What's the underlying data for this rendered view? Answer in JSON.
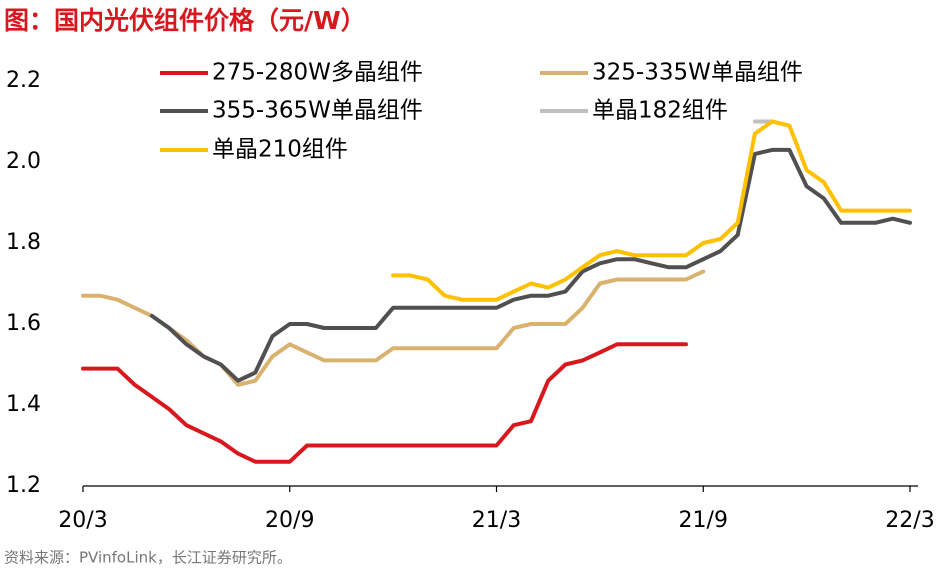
{
  "chart_data": {
    "type": "line",
    "title": "图：国内光伏组件价格（元/W）",
    "source": "资料来源：PVinfoLink，长江证券研究所。",
    "categories": [
      "20/3",
      null,
      null,
      null,
      null,
      null,
      null,
      null,
      null,
      null,
      null,
      null,
      "20/9",
      null,
      null,
      null,
      null,
      null,
      null,
      null,
      null,
      null,
      null,
      null,
      "21/3",
      null,
      null,
      null,
      null,
      null,
      null,
      null,
      null,
      null,
      null,
      null,
      "21/9",
      null,
      null,
      null,
      null,
      null,
      null,
      null,
      null,
      null,
      null,
      null,
      "22/3"
    ],
    "series": [
      {
        "name": "275-280W多晶组件",
        "color": "#d7191f",
        "values": [
          1.49,
          1.49,
          1.49,
          1.45,
          1.42,
          1.39,
          1.35,
          1.33,
          1.31,
          1.28,
          1.26,
          1.26,
          1.26,
          1.3,
          1.3,
          1.3,
          1.3,
          1.3,
          1.3,
          1.3,
          1.3,
          1.3,
          1.3,
          1.3,
          1.3,
          1.35,
          1.36,
          1.46,
          1.5,
          1.51,
          1.53,
          1.55,
          1.55,
          1.55,
          1.55,
          1.55,
          null,
          null,
          null,
          null,
          null,
          null,
          null,
          null,
          null,
          null,
          null,
          null,
          null
        ]
      },
      {
        "name": "325-335W单晶组件",
        "color": "#d9b26f",
        "values": [
          1.67,
          1.67,
          1.66,
          1.64,
          1.62,
          1.59,
          1.56,
          1.52,
          1.5,
          1.45,
          1.46,
          1.52,
          1.55,
          1.53,
          1.51,
          1.51,
          1.51,
          1.51,
          1.54,
          1.54,
          1.54,
          1.54,
          1.54,
          1.54,
          1.54,
          1.59,
          1.6,
          1.6,
          1.6,
          1.64,
          1.7,
          1.71,
          1.71,
          1.71,
          1.71,
          1.71,
          1.73,
          null,
          null,
          null,
          null,
          null,
          null,
          null,
          null,
          null,
          null,
          null,
          null
        ]
      },
      {
        "name": "355-365W单晶组件",
        "color": "#505050",
        "values": [
          null,
          null,
          null,
          null,
          1.62,
          1.59,
          1.55,
          1.52,
          1.5,
          1.46,
          1.48,
          1.57,
          1.6,
          1.6,
          1.59,
          1.59,
          1.59,
          1.59,
          1.64,
          1.64,
          1.64,
          1.64,
          1.64,
          1.64,
          1.64,
          1.66,
          1.67,
          1.67,
          1.68,
          1.73,
          1.75,
          1.76,
          1.76,
          1.75,
          1.74,
          1.74,
          1.76,
          1.78,
          1.82,
          2.02,
          2.03,
          2.03,
          1.94,
          1.91,
          1.85,
          1.85,
          1.85,
          1.86,
          1.85
        ]
      },
      {
        "name": "单晶182组件",
        "color": "#bfbfbf",
        "values": [
          null,
          null,
          null,
          null,
          null,
          null,
          null,
          null,
          null,
          null,
          null,
          null,
          null,
          null,
          null,
          null,
          null,
          null,
          null,
          null,
          null,
          null,
          null,
          null,
          null,
          null,
          null,
          null,
          null,
          null,
          null,
          null,
          null,
          null,
          null,
          null,
          null,
          null,
          null,
          2.1,
          2.1,
          null,
          null,
          null,
          null,
          null,
          null,
          null,
          null
        ]
      },
      {
        "name": "单晶210组件",
        "color": "#ffc000",
        "values": [
          null,
          null,
          null,
          null,
          null,
          null,
          null,
          null,
          null,
          null,
          null,
          null,
          null,
          null,
          null,
          null,
          null,
          null,
          1.72,
          1.72,
          1.71,
          1.67,
          1.66,
          1.66,
          1.66,
          1.68,
          1.7,
          1.69,
          1.71,
          1.74,
          1.77,
          1.78,
          1.77,
          1.77,
          1.77,
          1.77,
          1.8,
          1.81,
          1.85,
          2.07,
          2.1,
          2.09,
          1.98,
          1.95,
          1.88,
          1.88,
          1.88,
          1.88,
          1.88
        ]
      }
    ],
    "ylim": [
      1.2,
      2.2
    ],
    "yticks": [
      1.2,
      1.4,
      1.6,
      1.8,
      {
        "value": 2,
        "label": "2.0"
      },
      2.2
    ]
  }
}
